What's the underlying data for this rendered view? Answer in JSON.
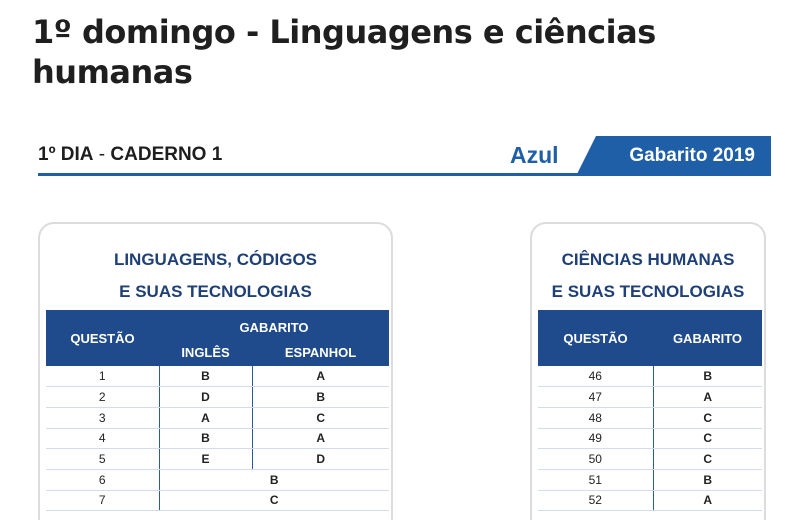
{
  "page": {
    "title": "1º domingo - Linguagens e ciências humanas"
  },
  "doc": {
    "day_label": "1º DIA",
    "separator": " - ",
    "booklet": "CADERNO 1",
    "color_label": "Azul",
    "tab_label": "Gabarito 2019",
    "accent_color": "#1f5fa8",
    "header_color": "#1f4a8c"
  },
  "left_table": {
    "title_line1": "LINGUAGENS, CÓDIGOS",
    "title_line2": "E SUAS TECNOLOGIAS",
    "col_question": "QUESTÃO",
    "col_answer": "GABARITO",
    "col_english": "INGLÊS",
    "col_spanish": "ESPANHOL",
    "rows": [
      {
        "q": "1",
        "en": "B",
        "es": "A"
      },
      {
        "q": "2",
        "en": "D",
        "es": "B"
      },
      {
        "q": "3",
        "en": "A",
        "es": "C"
      },
      {
        "q": "4",
        "en": "B",
        "es": "A"
      },
      {
        "q": "5",
        "en": "E",
        "es": "D"
      },
      {
        "q": "6",
        "both": "B"
      },
      {
        "q": "7",
        "both": "C"
      }
    ]
  },
  "right_table": {
    "title_line1": "CIÊNCIAS HUMANAS",
    "title_line2": "E SUAS TECNOLOGIAS",
    "col_question": "QUESTÃO",
    "col_answer": "GABARITO",
    "rows": [
      {
        "q": "46",
        "a": "B"
      },
      {
        "q": "47",
        "a": "A"
      },
      {
        "q": "48",
        "a": "C"
      },
      {
        "q": "49",
        "a": "C"
      },
      {
        "q": "50",
        "a": "C"
      },
      {
        "q": "51",
        "a": "B"
      },
      {
        "q": "52",
        "a": "A"
      }
    ]
  }
}
